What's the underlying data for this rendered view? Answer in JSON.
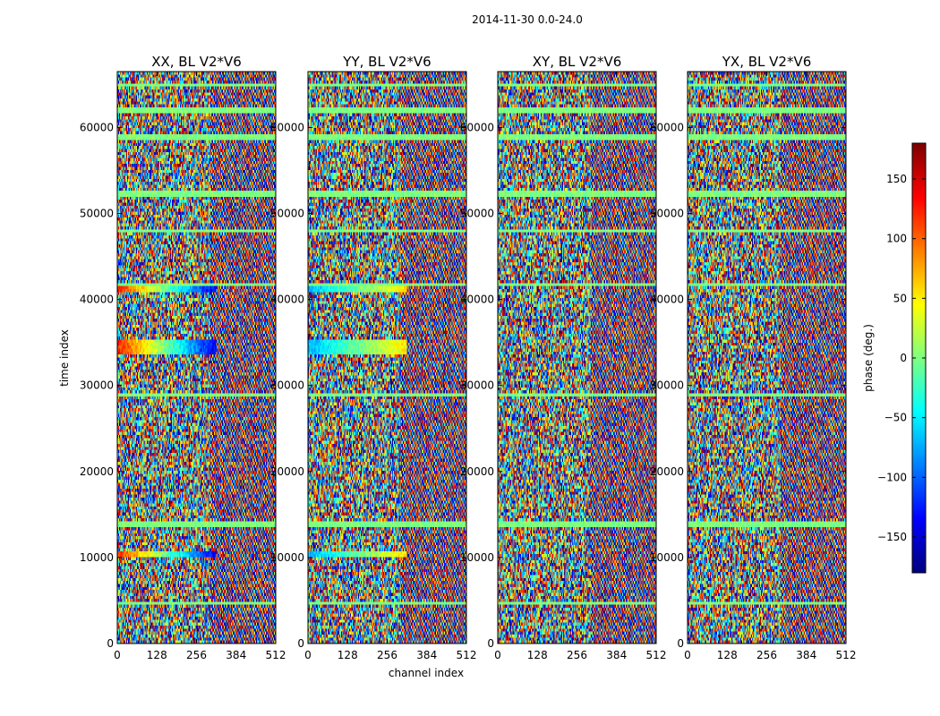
{
  "chart_data": {
    "type": "heatmap",
    "suptitle": "2014-11-30 0.0-24.0",
    "xlabel": "channel index",
    "ylabel": "time index",
    "xlim": [
      0,
      512
    ],
    "ylim": [
      0,
      66500
    ],
    "xticks": [
      0,
      128,
      256,
      384,
      512
    ],
    "yticks": [
      0,
      10000,
      20000,
      30000,
      40000,
      50000,
      60000
    ],
    "panels": [
      {
        "title": "XX, BL V2*V6",
        "pol": "XX"
      },
      {
        "title": "YY, BL V2*V6",
        "pol": "YY"
      },
      {
        "title": "XY, BL V2*V6",
        "pol": "XY"
      },
      {
        "title": "YX, BL V2*V6",
        "pol": "YX"
      }
    ],
    "colorbar": {
      "label": "phase (deg.)",
      "range": [
        -180,
        180
      ],
      "ticks": [
        150,
        100,
        50,
        0,
        -50,
        -100,
        -150
      ],
      "colormap": "jet"
    },
    "flat_bands_time": [
      4700,
      13900,
      29000,
      41800,
      48000,
      52300,
      58800,
      62000,
      64900
    ],
    "calibrator_bands": [
      {
        "t0": 9900,
        "t1": 10900,
        "ch_max": 320
      },
      {
        "t0": 33600,
        "t1": 35200,
        "ch_max": 320
      },
      {
        "t0": 40800,
        "t1": 41800,
        "ch_max": 320
      }
    ]
  }
}
